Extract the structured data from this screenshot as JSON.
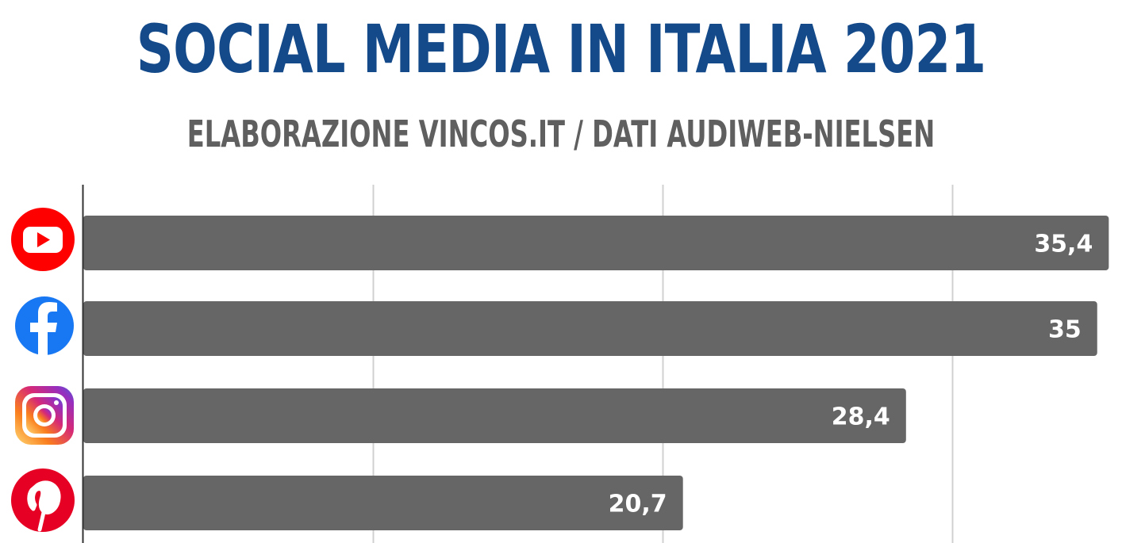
{
  "colors": {
    "title": "#144a8a",
    "subtitle": "#5f5f5f",
    "bar": "#666666",
    "grid": "#d0d0d0",
    "axis": "#333333",
    "youtube": "#ff0000",
    "facebook": "#1877f2",
    "pinterest": "#e60023"
  },
  "chart_data": {
    "type": "bar",
    "orientation": "horizontal",
    "title": "SOCIAL MEDIA IN ITALIA 2021",
    "subtitle": "ELABORAZIONE VINCOS.IT / DATI AUDIWEB-NIELSEN",
    "categories": [
      "YouTube",
      "Facebook",
      "Instagram",
      "Pinterest"
    ],
    "icons": [
      "youtube-icon",
      "facebook-icon",
      "instagram-icon",
      "pinterest-icon"
    ],
    "values": [
      35.4,
      35,
      28.4,
      20.7
    ],
    "value_labels": [
      "35,4",
      "35",
      "28,4",
      "20,7"
    ],
    "xlim": [
      0,
      35.5
    ],
    "gridlines": [
      10,
      20,
      30
    ],
    "grid": true,
    "xlabel": "",
    "ylabel": ""
  }
}
